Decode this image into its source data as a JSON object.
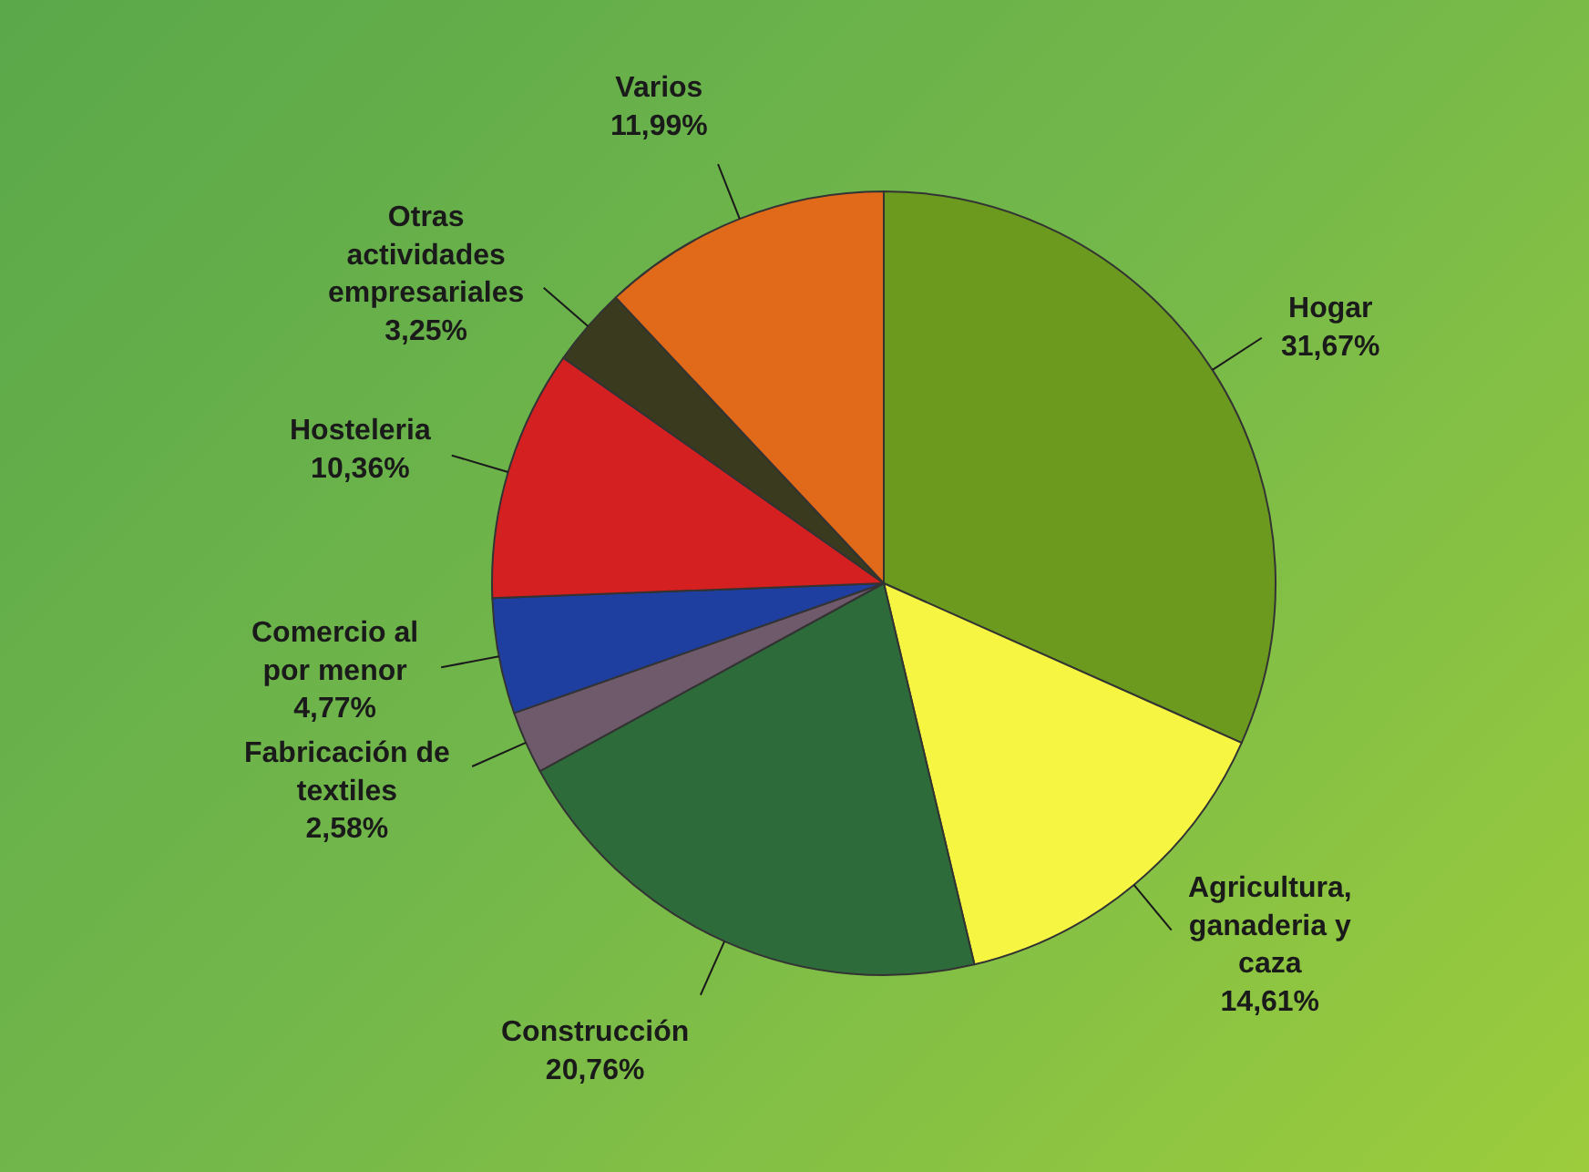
{
  "chart_data": {
    "type": "pie",
    "categories": [
      "Hogar",
      "Agricultura, ganaderia y caza",
      "Construcción",
      "Fabricación de textiles",
      "Comercio al por menor",
      "Hosteleria",
      "Otras actividades empresariales",
      "Varios"
    ],
    "values": [
      31.67,
      14.61,
      20.76,
      2.58,
      4.77,
      10.36,
      3.25,
      11.99
    ],
    "value_labels": [
      "31,67%",
      "14,61%",
      "20,76%",
      "2,58%",
      "4,77%",
      "10,36%",
      "3,25%",
      "11,99%"
    ],
    "colors": [
      "#6b9a1f",
      "#f5f542",
      "#2e6b3a",
      "#6e5a6a",
      "#1e3fa0",
      "#d42020",
      "#3a3a1e",
      "#e06a1a"
    ],
    "legend": false
  }
}
